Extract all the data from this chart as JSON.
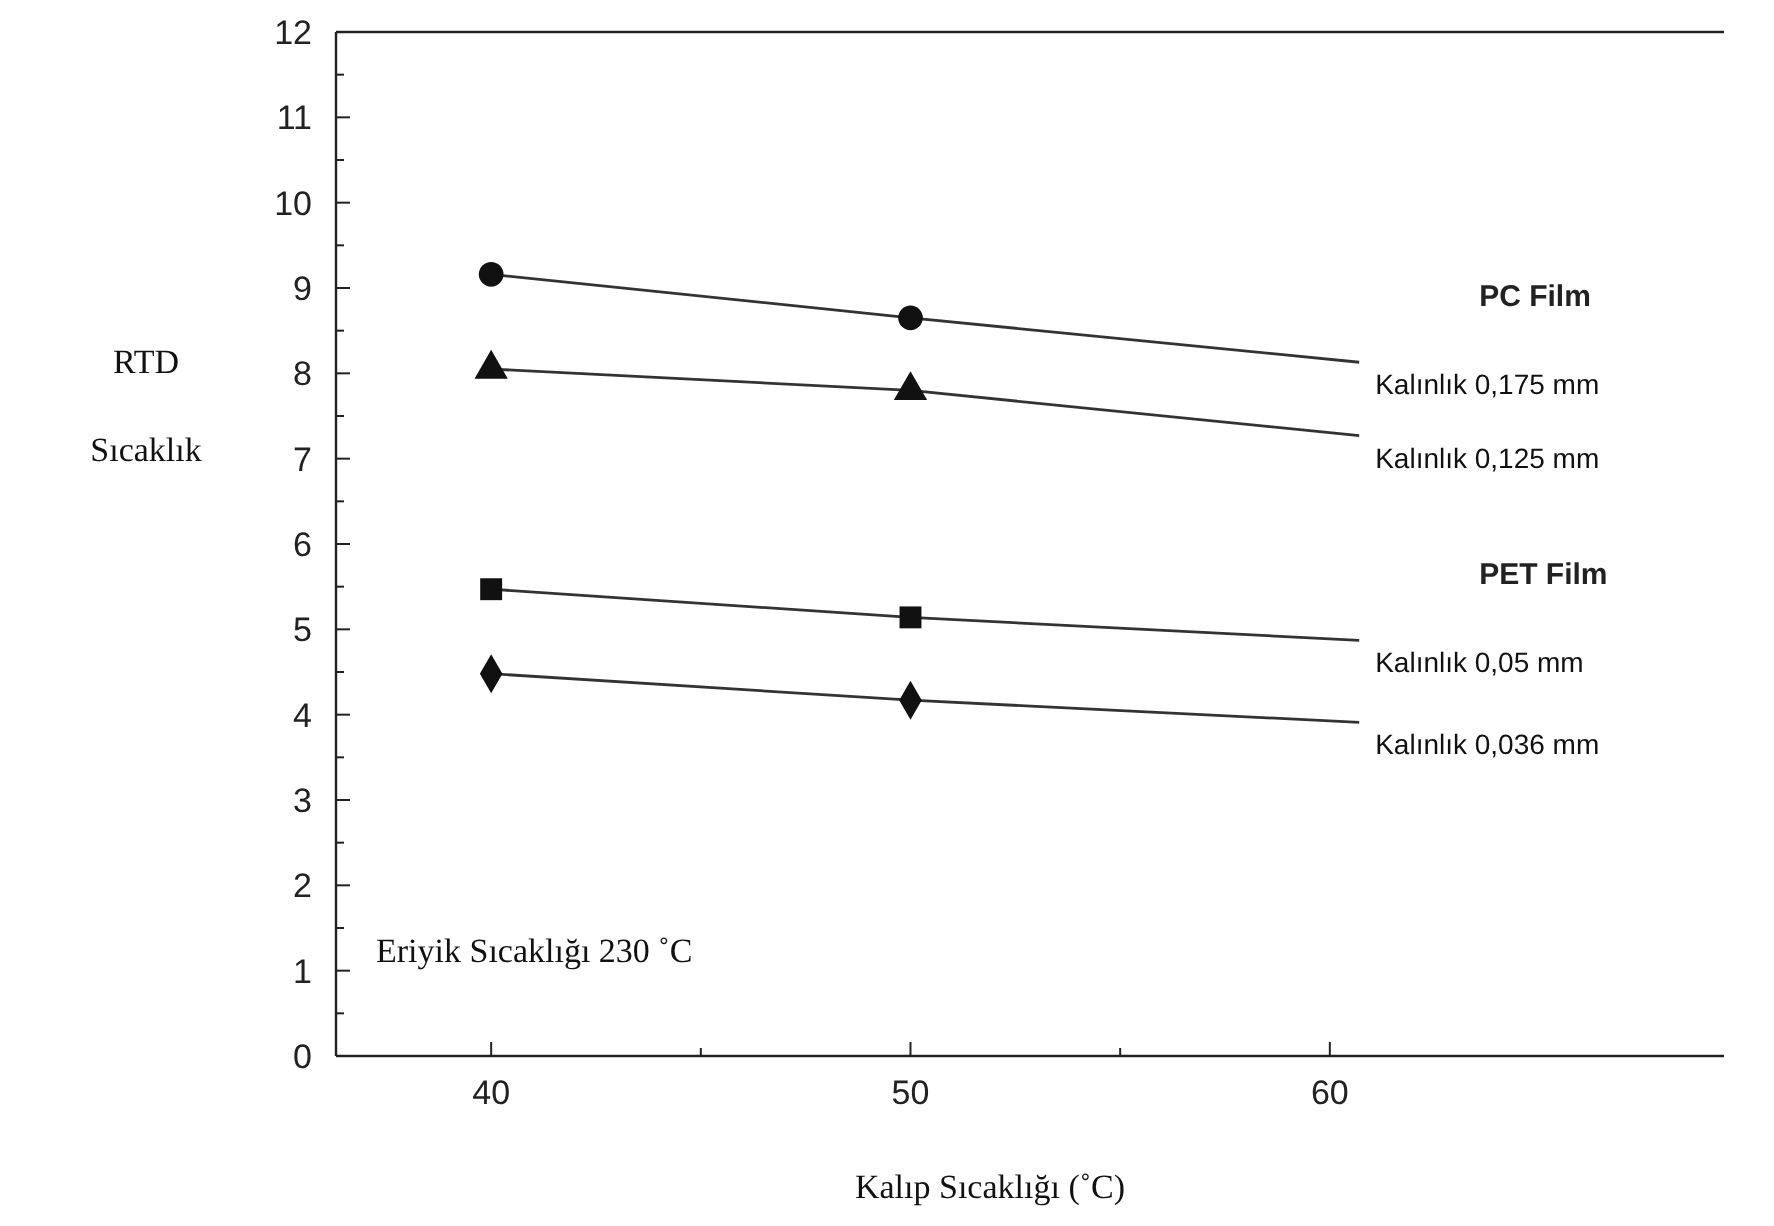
{
  "chart_data": {
    "type": "line",
    "xlabel": "Kalıp Sıcaklığı  (˚C)",
    "ylabel": "RTD Sıcaklık",
    "xlim": [
      36.3,
      69.4
    ],
    "xticks": [
      40,
      50,
      60
    ],
    "ylim": [
      0,
      12
    ],
    "yticks": [
      0,
      1,
      2,
      3,
      4,
      5,
      6,
      7,
      8,
      9,
      10,
      11,
      12
    ],
    "grid": false,
    "series": [
      {
        "name": "Kalınlık 0,175 mm",
        "color": "#333333",
        "marker": "none",
        "x": [
          40,
          50,
          60.7
        ],
        "values": [
          9.16,
          8.65,
          8.13
        ]
      },
      {
        "name": "Kalınlık 0,125 mm",
        "color": "#333333",
        "marker": "none",
        "x": [
          40,
          50,
          60.7
        ],
        "values": [
          8.05,
          7.8,
          7.27
        ]
      },
      {
        "name": "Kalınlık 0,05 mm",
        "color": "#333333",
        "marker": "none",
        "x": [
          40,
          50,
          60.7
        ],
        "values": [
          5.47,
          5.14,
          4.87
        ]
      },
      {
        "name": "Kalınlık 0,036 mm",
        "color": "#333333",
        "marker": "none",
        "x": [
          40,
          50,
          60.7
        ],
        "values": [
          4.48,
          4.17,
          3.91
        ]
      },
      {
        "type": "scatter",
        "color": "#111111",
        "marker": "circle",
        "x": [
          40,
          50
        ],
        "values": [
          9.16,
          8.65
        ]
      },
      {
        "type": "scatter",
        "color": "#111111",
        "marker": "triangle",
        "x": [
          40,
          50
        ],
        "values": [
          8.05,
          7.8
        ]
      },
      {
        "type": "scatter",
        "color": "#111111",
        "marker": "square",
        "x": [
          40,
          50
        ],
        "values": [
          5.47,
          5.14
        ]
      },
      {
        "type": "scatter",
        "color": "#111111",
        "marker": "diamond",
        "x": [
          40,
          50
        ],
        "values": [
          4.48,
          4.17
        ]
      }
    ],
    "annotations": [
      "PC Film",
      "PET Film",
      "Eriyik Sıcaklığı 230 ˚C"
    ]
  }
}
